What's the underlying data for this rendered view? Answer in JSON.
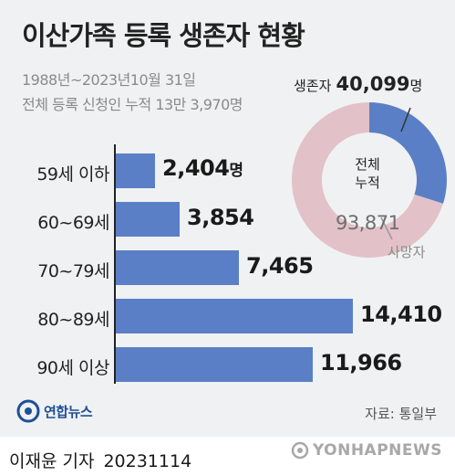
{
  "header": {
    "title": "이산가족 등록 생존자 현황",
    "subtitle_1": "1988년~2023년10월 31일",
    "subtitle_2": "전체 등록 신청인 누적 13만 3,970명"
  },
  "donut": {
    "alive_label": "생존자",
    "alive_value": "40,099",
    "alive_unit": "명",
    "center_line1": "전체",
    "center_line2": "누적",
    "dead_value": "93,871",
    "dead_label": "사망자"
  },
  "value_unit": "명",
  "footer": {
    "logo_text": "연합뉴스",
    "source": "자료: 통일부",
    "reporter": "이재윤 기자",
    "date": "20231114",
    "watermark": "YONHAPNEWS"
  },
  "colors": {
    "bar": "#5b7fc6",
    "donut_alive": "#5b7fc6",
    "donut_dead": "#e2c1c8",
    "background": "#f0f1f2"
  },
  "chart_data": [
    {
      "type": "bar",
      "orientation": "horizontal",
      "categories": [
        "59세 이하",
        "60~69세",
        "70~79세",
        "80~89세",
        "90세 이상"
      ],
      "values": [
        2404,
        3854,
        7465,
        14410,
        11966
      ],
      "value_labels": [
        "2,404",
        "3,854",
        "7,465",
        "14,410",
        "11,966"
      ],
      "unit": "명",
      "xlim": [
        0,
        14410
      ],
      "grid": false
    },
    {
      "type": "pie",
      "style": "donut",
      "labels": [
        "생존자",
        "사망자"
      ],
      "values": [
        40099,
        93871
      ],
      "total": 133970,
      "colors": [
        "#5b7fc6",
        "#e2c1c8"
      ]
    }
  ]
}
